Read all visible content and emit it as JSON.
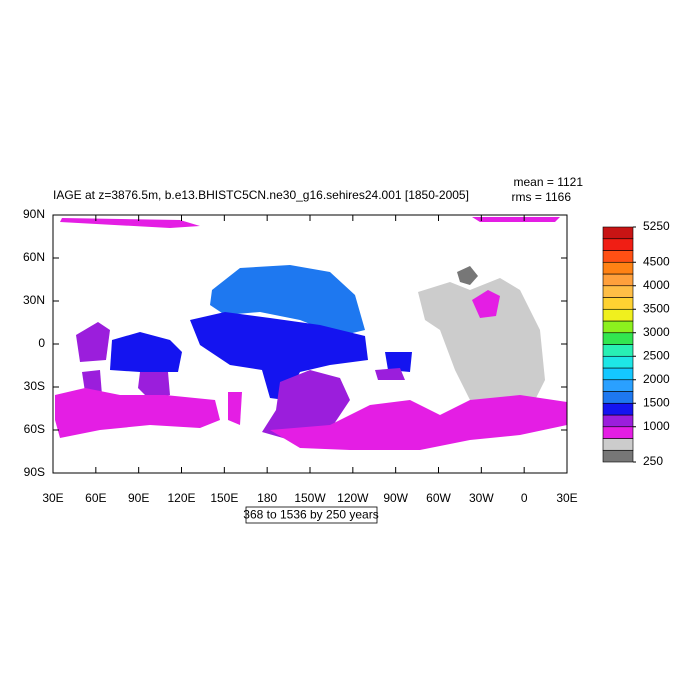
{
  "chart_data": {
    "type": "map",
    "title": "IAGE at z=3876.5m, b.e13.BHISTC5CN.ne30_g16.sehires24.001 [1850-2005]",
    "stats": [
      "mean = 1121",
      "rms = 1166"
    ],
    "info_label": "368 to 1536 by 250 years",
    "xlim": [
      30,
      390
    ],
    "xticks": [
      {
        "value": 30,
        "label": "30E"
      },
      {
        "value": 60,
        "label": "60E"
      },
      {
        "value": 90,
        "label": "90E"
      },
      {
        "value": 120,
        "label": "120E"
      },
      {
        "value": 150,
        "label": "150E"
      },
      {
        "value": 180,
        "label": "180"
      },
      {
        "value": 210,
        "label": "150W"
      },
      {
        "value": 240,
        "label": "120W"
      },
      {
        "value": 270,
        "label": "90W"
      },
      {
        "value": 300,
        "label": "60W"
      },
      {
        "value": 330,
        "label": "30W"
      },
      {
        "value": 360,
        "label": "0"
      },
      {
        "value": 390,
        "label": "30E"
      }
    ],
    "ylim": [
      -90,
      90
    ],
    "yticks": [
      {
        "value": 90,
        "label": "90N"
      },
      {
        "value": 60,
        "label": "60N"
      },
      {
        "value": 30,
        "label": "30N"
      },
      {
        "value": 0,
        "label": "0"
      },
      {
        "value": -30,
        "label": "30S"
      },
      {
        "value": -60,
        "label": "60S"
      },
      {
        "value": -90,
        "label": "90S"
      }
    ],
    "colorbar": {
      "lim": [
        250,
        5250
      ],
      "ticks": [
        250,
        1000,
        1500,
        2000,
        2500,
        3000,
        3500,
        4000,
        4500,
        5250
      ],
      "colors": [
        "#777777",
        "#cccccc",
        "#e41ee4",
        "#9b1edc",
        "#1414f0",
        "#1e78f0",
        "#2aa0ff",
        "#14c8ff",
        "#1ee6e6",
        "#28f0b4",
        "#32e650",
        "#8cf01e",
        "#f0f01e",
        "#ffd232",
        "#ffbe46",
        "#ffa03c",
        "#ff8214",
        "#ff5014",
        "#f01e14",
        "#c81414"
      ]
    }
  }
}
